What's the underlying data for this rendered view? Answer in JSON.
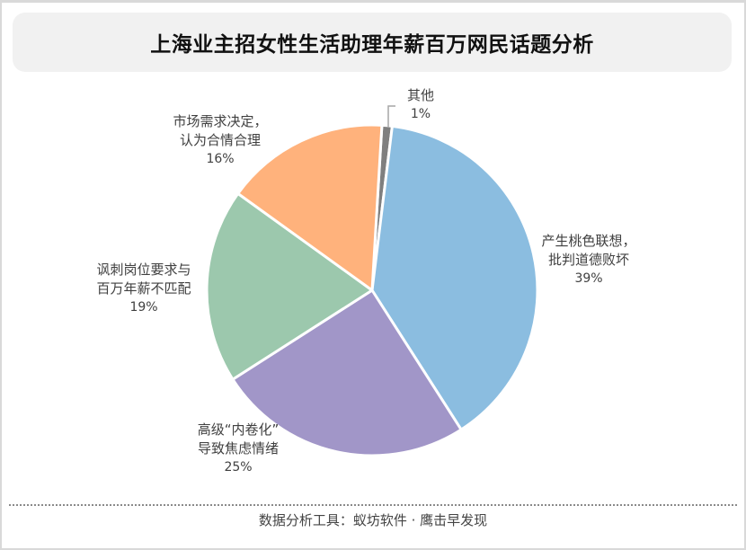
{
  "header": {
    "title": "上海业主招女性生活助理年薪百万网民话题分析"
  },
  "chart_data": {
    "type": "pie",
    "title": "上海业主招女性生活助理年薪百万网民话题分析",
    "start_angle_deg": 3.4,
    "direction": "clockwise",
    "slices": [
      {
        "label_line1": "其他",
        "label_line2": "",
        "label": "其他",
        "value": 1,
        "pct_label": "1%",
        "color": "#7f7f7f"
      },
      {
        "label_line1": "产生桃色联想，",
        "label_line2": "批判道德败坏",
        "label": "产生桃色联想，批判道德败坏",
        "value": 39,
        "pct_label": "39%",
        "color": "#8bbde0"
      },
      {
        "label_line1": "高级“内卷化”",
        "label_line2": "导致焦虑情绪",
        "label": "高级“内卷化”导致焦虑情绪",
        "value": 25,
        "pct_label": "25%",
        "color": "#a196c8"
      },
      {
        "label_line1": "讽刺岗位要求与",
        "label_line2": "百万年薪不匹配",
        "label": "讽刺岗位要求与百万年薪不匹配",
        "value": 19,
        "pct_label": "19%",
        "color": "#9cc8ad"
      },
      {
        "label_line1": "市场需求决定，",
        "label_line2": "认为合情合理",
        "label": "市场需求决定，认为合情合理",
        "value": 16,
        "pct_label": "16%",
        "color": "#ffb27c"
      }
    ],
    "legend": "none",
    "data_labels": "outside"
  },
  "footer": {
    "text": "数据分析工具：蚁坊软件 · 鹰击早发现"
  }
}
